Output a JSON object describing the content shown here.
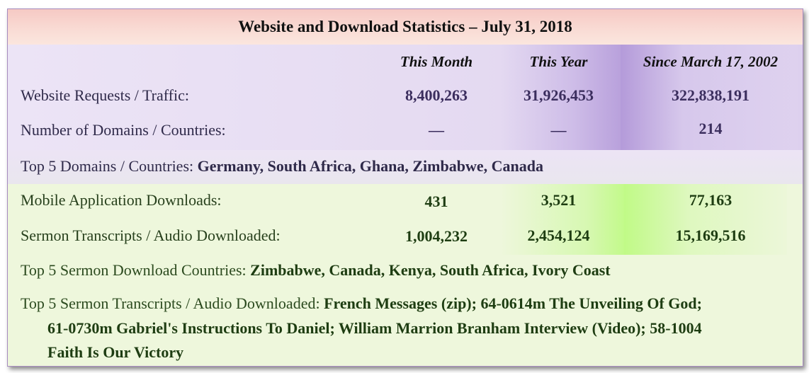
{
  "title": "Website and Download Statistics – July 31, 2018",
  "columns": [
    "This Month",
    "This Year",
    "Since March 17, 2002"
  ],
  "rows": [
    {
      "label": "Website Requests / Traffic:",
      "values": [
        "8,400,263",
        "31,926,453",
        "322,838,191"
      ]
    },
    {
      "label": "Number of Domains / Countries:",
      "values": [
        "—",
        "—",
        "214"
      ]
    },
    {
      "label": "Mobile Application Downloads:",
      "values": [
        "431",
        "3,521",
        "77,163"
      ]
    },
    {
      "label": "Sermon Transcripts / Audio Downloaded:",
      "values": [
        "1,004,232",
        "2,454,124",
        "15,169,516"
      ]
    }
  ],
  "top_domains": {
    "label": "Top 5 Domains / Countries:",
    "value": "Germany, South Africa, Ghana, Zimbabwe, Canada"
  },
  "top_sermon_countries": {
    "label": "Top 5 Sermon Download Countries:",
    "value": "Zimbabwe, Canada, Kenya, South Africa, Ivory Coast"
  },
  "top_transcripts": {
    "label": "Top 5 Sermon Transcripts / Audio Downloaded:",
    "line1": "French Messages (zip); 64-0614m The Unveiling Of God;",
    "line2": "61-0730m Gabriel's Instructions To Daniel; William Marrion Branham Interview (Video); 58-1004",
    "line3": "Faith Is Our Victory"
  }
}
